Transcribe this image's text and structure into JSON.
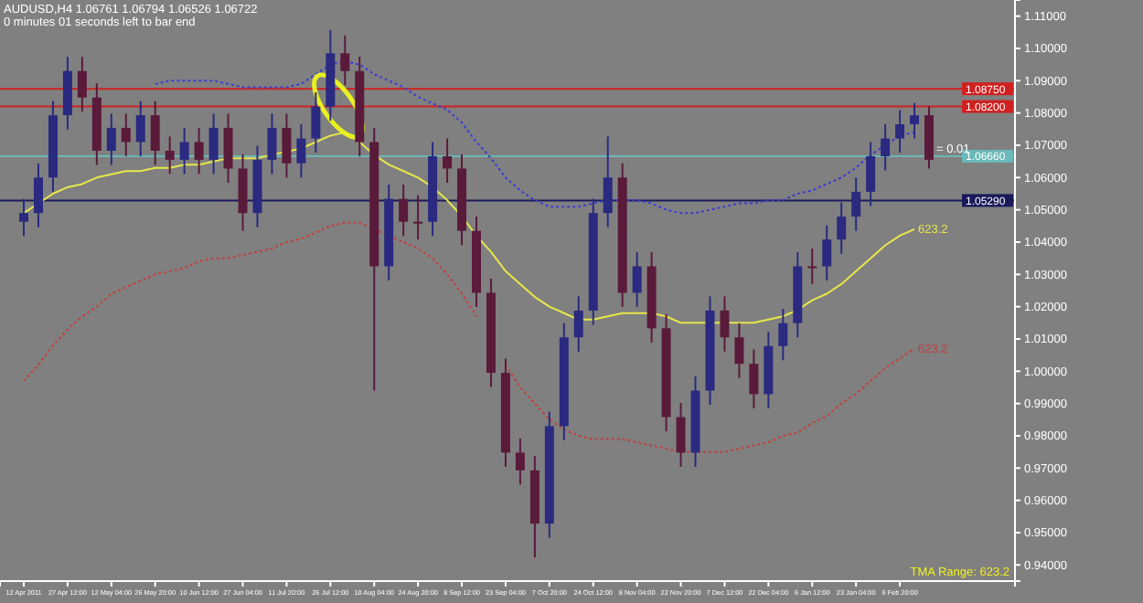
{
  "chart_data": {
    "type": "candlestick",
    "title": "AUDUSD,H4  1.06761 1.06794 1.06526 1.06722",
    "subtitle": "0 minutes 01 seconds left to bar end",
    "categories": [
      "12 Apr 2011",
      null,
      null,
      "27 Apr 12:00",
      null,
      null,
      "12 May 04:00",
      null,
      null,
      "26 May 20:00",
      null,
      null,
      "10 Jun 12:00",
      null,
      null,
      "27 Jun 04:00",
      null,
      null,
      "11 Jul 20:00",
      null,
      null,
      "26 Jul 12:00",
      null,
      null,
      "10 Aug 04:00",
      null,
      null,
      "24 Aug 20:00",
      null,
      null,
      "8 Sep 12:00",
      null,
      null,
      "23 Sep 04:00",
      null,
      null,
      "7 Oct 20:00",
      null,
      null,
      "24 Oct 12:00",
      null,
      null,
      "8 Nov 04:00",
      null,
      null,
      "22 Nov 20:00",
      null,
      null,
      "7 Dec 12:00",
      null,
      null,
      "22 Dec 04:00",
      null,
      null,
      "6 Jan 12:00",
      null,
      null,
      "23 Jan 04:00",
      null,
      null,
      "6 Feb 20:00",
      null,
      null
    ],
    "colors": [
      "#2a2a80",
      "#2a2a80",
      "#2a2a80",
      "#2a2a80",
      "#5a1a3a",
      "#5a1a3a",
      "#2a2a80",
      "#5a1a3a",
      "#2a2a80",
      "#5a1a3a",
      "#5a1a3a",
      "#2a2a80",
      "#5a1a3a",
      "#2a2a80",
      "#5a1a3a",
      "#5a1a3a",
      "#2a2a80",
      "#2a2a80",
      "#5a1a3a",
      "#2a2a80",
      "#2a2a80",
      "#2a2a80",
      "#5a1a3a",
      "#5a1a3a",
      "#5a1a3a",
      "#2a2a80",
      "#5a1a3a",
      "#5a1a3a",
      "#2a2a80",
      "#5a1a3a",
      "#5a1a3a",
      "#5a1a3a",
      "#5a1a3a",
      "#5a1a3a",
      "#5a1a3a",
      "#5a1a3a",
      "#2a2a80",
      "#2a2a80",
      "#2a2a80",
      "#2a2a80",
      "#2a2a80",
      "#5a1a3a",
      "#2a2a80",
      "#5a1a3a",
      "#5a1a3a",
      "#5a1a3a",
      "#2a2a80",
      "#2a2a80",
      "#5a1a3a",
      "#5a1a3a",
      "#5a1a3a",
      "#2a2a80",
      "#2a2a80",
      "#2a2a80",
      "#5a1a3a",
      "#2a2a80",
      "#2a2a80",
      "#2a2a80",
      "#2a2a80",
      "#2a2a80",
      "#2a2a80",
      "#2a2a80",
      "#5a1a3a"
    ],
    "ohlc": [
      [
        1.0463,
        1.0534,
        1.0419,
        1.049
      ],
      [
        1.049,
        1.0644,
        1.0446,
        1.06
      ],
      [
        1.06,
        1.0837,
        1.0556,
        1.0793
      ],
      [
        1.0793,
        1.0974,
        1.0749,
        1.093
      ],
      [
        1.093,
        1.0974,
        1.0804,
        1.0848
      ],
      [
        1.0848,
        1.0892,
        1.0639,
        1.0683
      ],
      [
        1.0683,
        1.0798,
        1.0639,
        1.0754
      ],
      [
        1.0754,
        1.0798,
        1.0666,
        1.071
      ],
      [
        1.071,
        1.0837,
        1.0666,
        1.0793
      ],
      [
        1.0793,
        1.0837,
        1.0639,
        1.0683
      ],
      [
        1.0683,
        1.0727,
        1.0611,
        1.0655
      ],
      [
        1.0655,
        1.0754,
        1.0611,
        1.071
      ],
      [
        1.071,
        1.0754,
        1.0611,
        1.0655
      ],
      [
        1.0655,
        1.0798,
        1.0611,
        1.0754
      ],
      [
        1.0754,
        1.0798,
        1.0584,
        1.0628
      ],
      [
        1.0628,
        1.0672,
        1.0435,
        1.049
      ],
      [
        1.049,
        1.0699,
        1.0446,
        1.0655
      ],
      [
        1.0655,
        1.0798,
        1.0611,
        1.0754
      ],
      [
        1.0754,
        1.0798,
        1.06,
        1.0644
      ],
      [
        1.0644,
        1.0765,
        1.06,
        1.0721
      ],
      [
        1.0721,
        1.0864,
        1.0677,
        1.082
      ],
      [
        1.082,
        1.1057,
        1.0776,
        1.0985
      ],
      [
        1.0985,
        1.104,
        1.0886,
        1.093
      ],
      [
        1.093,
        1.0974,
        1.0666,
        1.071
      ],
      [
        1.071,
        1.0754,
        0.994,
        1.0325
      ],
      [
        1.0325,
        1.0578,
        1.0281,
        1.0534
      ],
      [
        1.0534,
        1.0578,
        1.0419,
        1.0463
      ],
      [
        1.0463,
        1.0545,
        1.0408,
        1.0463
      ],
      [
        1.0463,
        1.071,
        1.0419,
        1.0666
      ],
      [
        1.0666,
        1.0721,
        1.0584,
        1.0628
      ],
      [
        1.0628,
        1.0672,
        1.0391,
        1.0435
      ],
      [
        1.0435,
        1.0479,
        1.0199,
        1.0243
      ],
      [
        1.0243,
        1.0287,
        0.9951,
        0.9995
      ],
      [
        0.9995,
        1.0039,
        0.9704,
        0.9748
      ],
      [
        0.9748,
        0.9792,
        0.9649,
        0.9693
      ],
      [
        0.9693,
        0.9737,
        0.9423,
        0.9528
      ],
      [
        0.9528,
        0.9874,
        0.9484,
        0.983
      ],
      [
        0.983,
        1.0149,
        0.9786,
        1.0105
      ],
      [
        1.0105,
        1.0232,
        1.0061,
        1.0188
      ],
      [
        1.0188,
        1.0534,
        1.0144,
        1.049
      ],
      [
        1.049,
        1.0727,
        1.0446,
        1.06
      ],
      [
        1.06,
        1.0644,
        1.0199,
        1.0243
      ],
      [
        1.0243,
        1.0369,
        1.0199,
        1.0325
      ],
      [
        1.0325,
        1.0369,
        1.0089,
        1.0133
      ],
      [
        1.0133,
        1.0177,
        0.9814,
        0.9858
      ],
      [
        0.9858,
        0.9902,
        0.9704,
        0.9748
      ],
      [
        0.9748,
        0.9984,
        0.9704,
        0.994
      ],
      [
        0.994,
        1.0232,
        0.9896,
        1.0188
      ],
      [
        1.0188,
        1.0232,
        1.0061,
        1.0105
      ],
      [
        1.0105,
        1.0149,
        0.9979,
        1.0023
      ],
      [
        1.0023,
        1.0067,
        0.9885,
        0.9929
      ],
      [
        0.9929,
        1.0122,
        0.9885,
        1.0078
      ],
      [
        1.0078,
        1.0193,
        1.0034,
        1.0149
      ],
      [
        1.0149,
        1.0369,
        1.0105,
        1.0325
      ],
      [
        1.0325,
        1.038,
        1.027,
        1.0325
      ],
      [
        1.0325,
        1.0452,
        1.0281,
        1.0408
      ],
      [
        1.0408,
        1.0523,
        1.0364,
        1.0479
      ],
      [
        1.0479,
        1.06,
        1.0435,
        1.0556
      ],
      [
        1.0556,
        1.071,
        1.0512,
        1.0666
      ],
      [
        1.0666,
        1.0765,
        1.0622,
        1.0721
      ],
      [
        1.0721,
        1.0809,
        1.0677,
        1.0765
      ],
      [
        1.0765,
        1.0831,
        1.0721,
        1.0793
      ],
      [
        1.0793,
        1.082,
        1.0628,
        1.0655
      ]
    ],
    "series": [
      {
        "type": "line",
        "color": "#3c3cd2",
        "line_style": "dotted",
        "values": [
          null,
          null,
          null,
          null,
          null,
          null,
          null,
          null,
          null,
          1.089,
          1.09,
          1.09,
          1.09,
          1.09,
          1.089,
          1.088,
          1.088,
          1.088,
          1.088,
          1.089,
          1.092,
          1.095,
          1.096,
          1.095,
          1.092,
          1.09,
          1.088,
          1.085,
          1.083,
          1.081,
          1.077,
          1.071,
          1.066,
          1.06,
          1.056,
          1.053,
          1.051,
          1.051,
          1.051,
          1.052,
          1.053,
          1.053,
          1.053,
          1.052,
          1.05,
          1.049,
          1.049,
          1.05,
          1.051,
          1.052,
          1.052,
          1.053,
          1.053,
          1.055,
          1.056,
          1.058,
          1.06,
          1.063,
          1.067,
          1.07,
          1.073,
          1.074,
          null
        ]
      },
      {
        "type": "line",
        "color": "#e6e64a",
        "line_style": "solid",
        "values": [
          1.049,
          1.052,
          1.055,
          1.057,
          1.058,
          1.06,
          1.061,
          1.062,
          1.062,
          1.063,
          1.063,
          1.064,
          1.064,
          1.065,
          1.066,
          1.066,
          1.066,
          1.067,
          1.068,
          1.069,
          1.071,
          1.073,
          1.074,
          1.071,
          1.067,
          1.064,
          1.062,
          1.06,
          1.057,
          1.053,
          1.048,
          1.042,
          1.037,
          1.031,
          1.027,
          1.023,
          1.02,
          1.018,
          1.016,
          1.016,
          1.017,
          1.018,
          1.018,
          1.018,
          1.017,
          1.015,
          1.015,
          1.015,
          1.015,
          1.015,
          1.015,
          1.016,
          1.017,
          1.019,
          1.022,
          1.024,
          1.027,
          1.031,
          1.035,
          1.039,
          1.042,
          1.044,
          null
        ]
      },
      {
        "type": "line",
        "color": "#c04040",
        "line_style": "dotted",
        "values": [
          0.997,
          1.002,
          1.008,
          1.013,
          1.017,
          1.02,
          1.024,
          1.026,
          1.028,
          1.03,
          1.031,
          1.032,
          1.034,
          1.035,
          1.035,
          1.036,
          1.037,
          1.038,
          1.04,
          1.041,
          1.043,
          1.045,
          1.046,
          1.046,
          1.044,
          1.042,
          1.04,
          1.038,
          1.035,
          1.03,
          1.024,
          1.017,
          null,
          1.002,
          0.995,
          0.99,
          0.985,
          0.982,
          0.98,
          0.979,
          0.979,
          0.979,
          0.978,
          0.977,
          0.976,
          0.975,
          0.975,
          0.975,
          0.975,
          0.976,
          0.977,
          0.978,
          0.98,
          0.981,
          0.984,
          0.986,
          0.99,
          0.993,
          0.997,
          1.001,
          1.004,
          1.007,
          null
        ]
      }
    ],
    "ylim": [
      0.935,
      1.115
    ],
    "yticks": [
      {
        "value": 0.94,
        "label": "0.94000"
      },
      {
        "value": 0.95,
        "label": "0.95000"
      },
      {
        "value": 0.96,
        "label": "0.96000"
      },
      {
        "value": 0.97,
        "label": "0.97000"
      },
      {
        "value": 0.98,
        "label": "0.98000"
      },
      {
        "value": 0.99,
        "label": "0.99000"
      },
      {
        "value": 1.0,
        "label": "1.00000"
      },
      {
        "value": 1.01,
        "label": "1.01000"
      },
      {
        "value": 1.02,
        "label": "1.02000"
      },
      {
        "value": 1.03,
        "label": "1.03000"
      },
      {
        "value": 1.04,
        "label": "1.04000"
      },
      {
        "value": 1.05,
        "label": "1.05000"
      },
      {
        "value": 1.06,
        "label": "1.06000"
      },
      {
        "value": 1.07,
        "label": "1.07000"
      },
      {
        "value": 1.08,
        "label": "1.08000"
      },
      {
        "value": 1.09,
        "label": "1.09000"
      },
      {
        "value": 1.1,
        "label": "1.10000"
      },
      {
        "value": 1.11,
        "label": "1.11000"
      }
    ],
    "ref_lines": [
      {
        "axis": "y",
        "value": 1.0875,
        "label": "1.08750",
        "color": "#d02020"
      },
      {
        "axis": "y",
        "value": 1.082,
        "label": "1.08200",
        "color": "#d02020"
      },
      {
        "axis": "y",
        "value": 1.0666,
        "label": "1.06660",
        "color": "#6ab8b8"
      },
      {
        "axis": "y",
        "value": 1.0529,
        "label": "1.05290",
        "color": "#1a1a5a"
      }
    ],
    "annotations": [
      "= 0.01",
      "623.2",
      "623.2",
      "TMA Range: 623.2"
    ],
    "grid": false
  }
}
